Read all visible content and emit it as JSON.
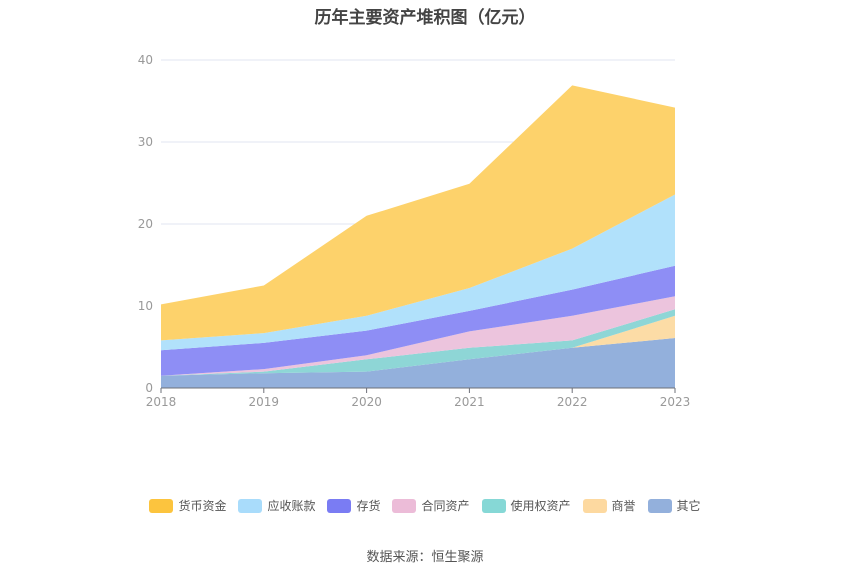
{
  "chart_data": {
    "type": "area",
    "stacked": true,
    "title": "历年主要资产堆积图（亿元）",
    "categories": [
      "2018",
      "2019",
      "2020",
      "2021",
      "2022",
      "2023"
    ],
    "ylim": [
      0,
      40
    ],
    "yticks": [
      "0",
      "10",
      "20",
      "30",
      "40"
    ],
    "grid": true,
    "legend_position": "bottom",
    "series": [
      {
        "name": "其它",
        "color": "#93b0dc",
        "values": [
          1.5,
          1.8,
          2.0,
          3.5,
          4.9,
          6.1
        ]
      },
      {
        "name": "商誉",
        "color": "#fcdca6",
        "values": [
          0,
          0,
          0,
          0,
          0,
          2.7
        ]
      },
      {
        "name": "使用权资产",
        "color": "#8ed6d6",
        "values": [
          0,
          0.2,
          1.5,
          1.4,
          0.9,
          0.8
        ]
      },
      {
        "name": "合同资产",
        "color": "#ecc4dd",
        "values": [
          0,
          0.3,
          0.5,
          2.0,
          3.0,
          1.6
        ]
      },
      {
        "name": "存货",
        "color": "#8e8ef5",
        "values": [
          3.1,
          3.2,
          3.0,
          2.5,
          3.2,
          3.7
        ]
      },
      {
        "name": "应收账款",
        "color": "#b1e1fb",
        "values": [
          1.2,
          1.2,
          1.8,
          2.8,
          5.0,
          8.7
        ]
      },
      {
        "name": "货币资金",
        "color": "#fdd26b",
        "values": [
          4.4,
          5.8,
          12.2,
          12.7,
          19.9,
          10.6
        ]
      }
    ],
    "legend_order": [
      "货币资金",
      "应收账款",
      "存货",
      "合同资产",
      "使用权资产",
      "商誉",
      "其它"
    ],
    "legend_colors": [
      "#fcc43e",
      "#a9dcfb",
      "#7a7cf3",
      "#ecbcd8",
      "#86d8d6",
      "#fdd9a0",
      "#93b0dc"
    ]
  },
  "source_text": "数据来源：恒生聚源"
}
